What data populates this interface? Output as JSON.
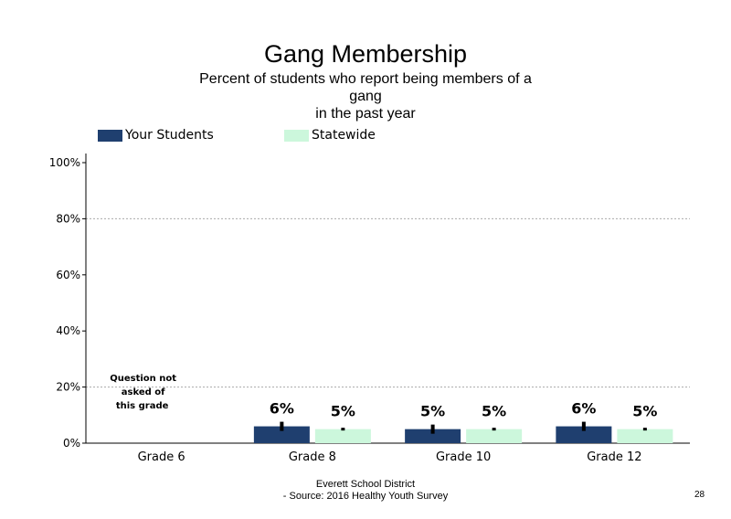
{
  "colors": {
    "your_students": "#1f3f6f",
    "statewide": "#ccf7dc",
    "grid": "#aaaaaa",
    "axis": "#000000"
  },
  "chart_data": {
    "type": "bar",
    "title": "Gang Membership",
    "subtitle": [
      "Percent of students who report being members of a",
      "gang",
      "in the past year"
    ],
    "categories": [
      "Grade 6",
      "Grade 8",
      "Grade 10",
      "Grade 12"
    ],
    "series": [
      {
        "name": "Your Students",
        "values": [
          null,
          6,
          5,
          6
        ],
        "labels": [
          "",
          "6%",
          "5%",
          "6%"
        ]
      },
      {
        "name": "Statewide",
        "values": [
          null,
          5,
          5,
          5
        ],
        "labels": [
          "",
          "5%",
          "5%",
          "5%"
        ]
      }
    ],
    "ylim": [
      0,
      100
    ],
    "yticks": [
      "0%",
      "20%",
      "40%",
      "60%",
      "80%",
      "100%"
    ],
    "gridlines_at": [
      20,
      80
    ],
    "legend": "top",
    "annotation": [
      "Question not",
      "asked of",
      "this grade"
    ],
    "error_bars": true
  },
  "footer": {
    "line1": "Everett School District",
    "line2": "- Source: 2016 Healthy  Youth Survey"
  },
  "page_number": "28"
}
